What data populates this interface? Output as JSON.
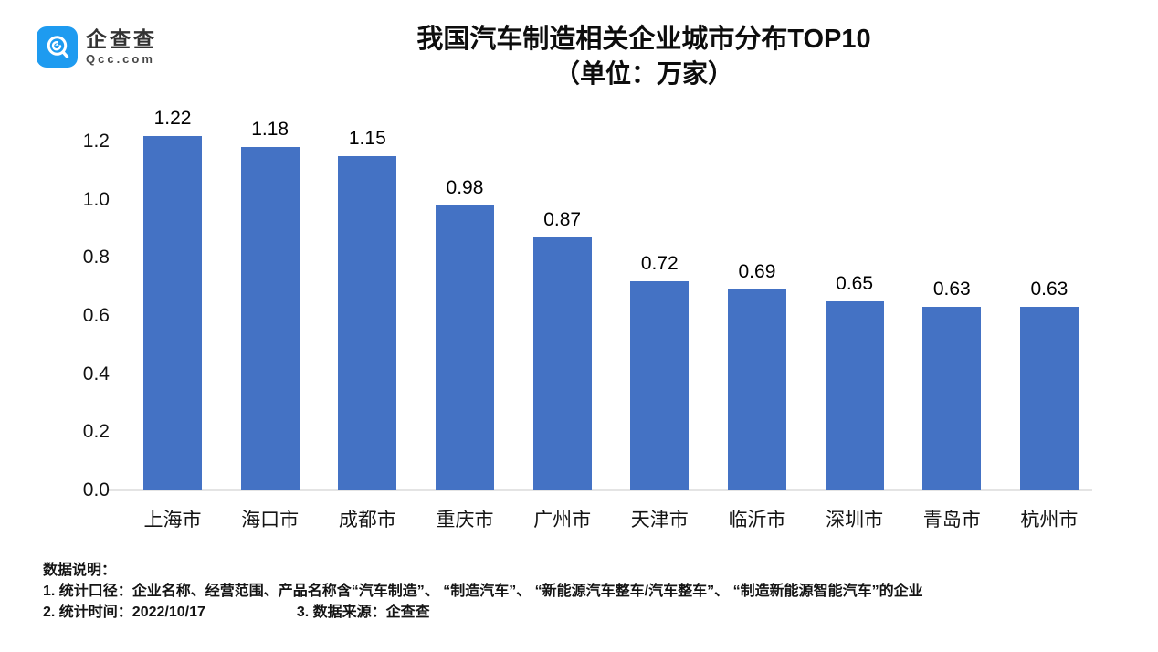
{
  "logo": {
    "name": "企查查",
    "domain": "Qcc.com"
  },
  "title": {
    "line1": "我国汽车制造相关企业城市分布TOP10",
    "line2": "（单位：万家）"
  },
  "chart_data": {
    "type": "bar",
    "categories": [
      "上海市",
      "海口市",
      "成都市",
      "重庆市",
      "广州市",
      "天津市",
      "临沂市",
      "深圳市",
      "青岛市",
      "杭州市"
    ],
    "values": [
      1.22,
      1.18,
      1.15,
      0.98,
      0.87,
      0.72,
      0.69,
      0.65,
      0.63,
      0.63
    ],
    "title": "我国汽车制造相关企业城市分布TOP10（单位：万家）",
    "xlabel": "",
    "ylabel": "",
    "ylim": [
      0,
      1.2
    ],
    "yticks": [
      0.0,
      0.2,
      0.4,
      0.6,
      0.8,
      1.0,
      1.2
    ],
    "bar_color": "#4472C4",
    "grid": false,
    "legend": false,
    "value_labels": [
      "1.22",
      "1.18",
      "1.15",
      "0.98",
      "0.87",
      "0.72",
      "0.69",
      "0.65",
      "0.63",
      "0.63"
    ],
    "ytick_labels": [
      "0.0",
      "0.2",
      "0.4",
      "0.6",
      "0.8",
      "1.0",
      "1.2"
    ]
  },
  "footer": {
    "heading": "数据说明：",
    "line1": "1. 统计口径：企业名称、经营范围、产品名称含“汽车制造”、 “制造汽车”、 “新能源汽车整车/汽车整车”、 “制造新能源智能汽车”的企业",
    "line2_left": "2. 统计时间：2022/10/17",
    "line2_right": "3. 数据来源：企查查"
  },
  "colors": {
    "bar": "#4472C4",
    "logo_blue": "#1E9BF0",
    "axis_line": "#E4E4E4",
    "text": "#141414"
  }
}
